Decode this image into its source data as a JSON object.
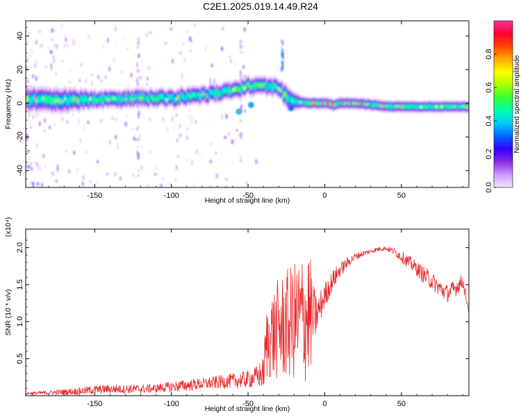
{
  "title": "C2E1.2025.019.14.49.R24",
  "chart_data": [
    {
      "type": "heatmap",
      "title": "C2E1.2025.019.14.49.R24",
      "xlabel": "Height of straight line (km)",
      "ylabel": "Frequency (Hz)",
      "xlim": [
        -195,
        94
      ],
      "ylim": [
        -50,
        49
      ],
      "xticks": [
        -150,
        -100,
        -50,
        0,
        50
      ],
      "yticks": [
        -40,
        -20,
        0,
        20,
        40
      ],
      "colorbar": {
        "label": "Normalized spectral amplitude",
        "range": [
          0.0,
          1.0
        ],
        "ticks": [
          "0.0",
          "0.2",
          "0.4",
          "0.6",
          "0.8"
        ],
        "colors": [
          "#f4e6ff",
          "#cc99ff",
          "#8a2be2",
          "#3300ff",
          "#0066ff",
          "#00ccff",
          "#00ffaa",
          "#33ff33",
          "#aaff00",
          "#ffff00",
          "#ffaa00",
          "#ff4400",
          "#ff0033",
          "#ff3399"
        ]
      },
      "ridge": {
        "x": [
          -195,
          -170,
          -150,
          -120,
          -100,
          -90,
          -80,
          -70,
          -60,
          -50,
          -40,
          -30,
          -25,
          -20,
          -15,
          -10,
          -5,
          0,
          5,
          10,
          20,
          40,
          60,
          80,
          94
        ],
        "y": [
          2,
          2,
          2,
          3,
          3,
          4,
          5,
          6,
          8,
          10,
          10,
          9,
          3,
          1,
          0.5,
          0,
          0,
          0,
          -1,
          0,
          0,
          -2,
          -2,
          -2,
          -2
        ],
        "width": [
          4,
          4,
          3,
          3,
          3,
          3,
          3,
          3,
          3,
          3,
          3,
          3,
          4,
          3,
          2,
          2,
          2,
          2,
          2,
          2,
          2,
          2,
          2,
          2,
          2
        ]
      },
      "secondary_features": [
        {
          "x": -56,
          "y": -5,
          "strength": 0.5
        },
        {
          "x": -48,
          "y": -1,
          "strength": 0.4
        },
        {
          "x": -22,
          "y": -3,
          "strength": 0.3
        }
      ],
      "streaks": [
        {
          "x": -122,
          "y_range": [
            -45,
            45
          ],
          "strength": 0.15
        },
        {
          "x": -55,
          "y_range": [
            -40,
            40
          ],
          "strength": 0.1
        },
        {
          "x": -28,
          "y_range": [
            20,
            38
          ],
          "strength": 0.25
        }
      ]
    },
    {
      "type": "line",
      "xlabel": "Height of straight line (km)",
      "ylabel": "SNR (10 * v/v)",
      "scale_label": "(x10⁴)",
      "xlim": [
        -195,
        94
      ],
      "ylim": [
        0,
        2.25
      ],
      "xticks": [
        -150,
        -100,
        -50,
        0,
        50
      ],
      "yticks": [
        0.5,
        1.0,
        1.5,
        2.0
      ],
      "ytick_labels": [
        "0.5",
        "1.0",
        "1.5",
        "2.0"
      ],
      "color": "#e8272a",
      "series": [
        {
          "name": "SNR",
          "x": [
            -195,
            -180,
            -170,
            -160,
            -150,
            -140,
            -130,
            -120,
            -110,
            -100,
            -90,
            -80,
            -70,
            -60,
            -50,
            -45,
            -40,
            -38,
            -35,
            -30,
            -25,
            -20,
            -15,
            -10,
            -8,
            -5,
            0,
            5,
            10,
            15,
            20,
            25,
            30,
            35,
            40,
            45,
            50,
            55,
            60,
            65,
            70,
            75,
            80,
            85,
            90,
            94
          ],
          "y": [
            0.03,
            0.04,
            0.05,
            0.06,
            0.08,
            0.09,
            0.09,
            0.09,
            0.1,
            0.12,
            0.14,
            0.16,
            0.18,
            0.2,
            0.22,
            0.25,
            0.3,
            0.7,
            0.8,
            0.9,
            0.95,
            1.0,
            1.05,
            1.1,
            1.05,
            1.1,
            1.35,
            1.55,
            1.7,
            1.8,
            1.88,
            1.92,
            1.95,
            1.98,
            1.99,
            1.95,
            1.88,
            1.8,
            1.72,
            1.62,
            1.55,
            1.45,
            1.38,
            1.45,
            1.55,
            1.15
          ],
          "spread": [
            0.02,
            0.03,
            0.04,
            0.05,
            0.06,
            0.06,
            0.06,
            0.06,
            0.06,
            0.07,
            0.08,
            0.08,
            0.09,
            0.1,
            0.12,
            0.14,
            0.22,
            0.5,
            0.6,
            0.7,
            0.75,
            0.8,
            0.9,
            0.95,
            0.5,
            0.25,
            0.18,
            0.14,
            0.1,
            0.07,
            0.05,
            0.04,
            0.03,
            0.03,
            0.03,
            0.05,
            0.08,
            0.09,
            0.1,
            0.12,
            0.12,
            0.12,
            0.12,
            0.12,
            0.1,
            0.06
          ]
        }
      ]
    }
  ]
}
